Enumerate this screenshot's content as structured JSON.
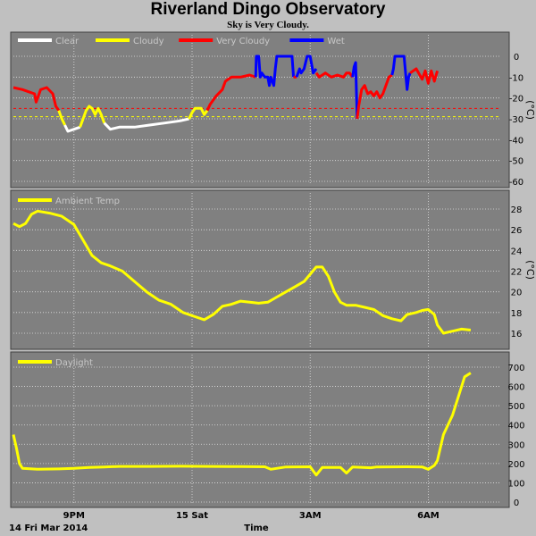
{
  "title": "Riverland Dingo Observatory",
  "subtitle": "Sky is Very Cloudy.",
  "x_axis": {
    "label": "Time",
    "date_label": "14 Fri Mar 2014",
    "ticks": [
      "9PM",
      "15 Sat",
      "3AM",
      "6AM"
    ]
  },
  "chart_data": [
    {
      "type": "line",
      "panel": "sky",
      "unit": "(°C)",
      "ylim": [
        -60,
        0
      ],
      "yticks": [
        "0",
        "-10",
        "-20",
        "-30",
        "-40",
        "-50",
        "-60"
      ],
      "x_units": "hours since 7PM",
      "thresholds": [
        {
          "value": -25,
          "color": "#ff0000"
        },
        {
          "value": -29,
          "color": "#ffff00"
        }
      ],
      "series": [
        {
          "name": "Clear",
          "color": "#ffffff"
        },
        {
          "name": "Cloudy",
          "color": "#ffff00"
        },
        {
          "name": "Very Cloudy",
          "color": "#ff0000"
        },
        {
          "name": "Wet",
          "color": "#0000ff"
        }
      ],
      "segments": [
        {
          "series": "Very Cloudy",
          "points": [
            [
              0.0,
              -15
            ],
            [
              0.3,
              -16
            ],
            [
              0.5,
              -17
            ],
            [
              0.7,
              -18
            ],
            [
              0.75,
              -22
            ],
            [
              0.8,
              -20
            ],
            [
              0.9,
              -16
            ],
            [
              1.1,
              -15
            ],
            [
              1.3,
              -18
            ],
            [
              1.4,
              -24
            ],
            [
              1.5,
              -26
            ]
          ]
        },
        {
          "series": "Cloudy",
          "points": [
            [
              1.5,
              -26
            ],
            [
              1.6,
              -30
            ],
            [
              1.7,
              -33
            ]
          ]
        },
        {
          "series": "Clear",
          "points": [
            [
              1.7,
              -33
            ],
            [
              1.8,
              -36
            ],
            [
              2.0,
              -35
            ],
            [
              2.2,
              -34
            ]
          ]
        },
        {
          "series": "Cloudy",
          "points": [
            [
              2.2,
              -34
            ],
            [
              2.3,
              -30
            ],
            [
              2.4,
              -26
            ],
            [
              2.5,
              -24
            ],
            [
              2.6,
              -25
            ],
            [
              2.7,
              -28
            ],
            [
              2.8,
              -25
            ],
            [
              2.9,
              -28
            ],
            [
              3.0,
              -32
            ]
          ]
        },
        {
          "series": "Clear",
          "points": [
            [
              3.0,
              -32
            ],
            [
              3.2,
              -35
            ],
            [
              3.5,
              -34
            ],
            [
              4.0,
              -34
            ],
            [
              4.5,
              -33
            ],
            [
              5.0,
              -32
            ],
            [
              5.5,
              -31
            ],
            [
              5.8,
              -30
            ]
          ]
        },
        {
          "series": "Cloudy",
          "points": [
            [
              5.8,
              -30
            ],
            [
              5.9,
              -27
            ],
            [
              6.0,
              -25
            ],
            [
              6.1,
              -25
            ],
            [
              6.2,
              -25
            ],
            [
              6.3,
              -28
            ],
            [
              6.4,
              -26
            ]
          ]
        },
        {
          "series": "Very Cloudy",
          "points": [
            [
              6.4,
              -26
            ],
            [
              6.5,
              -23
            ],
            [
              6.7,
              -19
            ],
            [
              6.9,
              -16
            ],
            [
              7.0,
              -12
            ],
            [
              7.2,
              -10
            ],
            [
              7.5,
              -10
            ],
            [
              7.8,
              -9
            ],
            [
              8.0,
              -10
            ]
          ]
        },
        {
          "series": "Wet",
          "points": [
            [
              8.0,
              -10
            ],
            [
              8.02,
              0
            ],
            [
              8.1,
              0
            ],
            [
              8.15,
              -10
            ],
            [
              8.2,
              -8
            ],
            [
              8.3,
              -10
            ],
            [
              8.4,
              -10
            ],
            [
              8.45,
              -14
            ],
            [
              8.5,
              -10
            ],
            [
              8.6,
              -14
            ],
            [
              8.65,
              -6
            ],
            [
              8.7,
              0
            ],
            [
              9.0,
              0
            ],
            [
              9.2,
              0
            ],
            [
              9.25,
              -10
            ]
          ]
        },
        {
          "series": "Very Cloudy",
          "points": [
            [
              9.25,
              -10
            ],
            [
              9.35,
              -10
            ]
          ]
        },
        {
          "series": "Wet",
          "points": [
            [
              9.35,
              -10
            ],
            [
              9.45,
              -6
            ],
            [
              9.5,
              -8
            ],
            [
              9.6,
              -6
            ],
            [
              9.7,
              0
            ],
            [
              9.8,
              0
            ],
            [
              9.9,
              -8
            ],
            [
              10.0,
              -6
            ]
          ]
        },
        {
          "series": "Very Cloudy",
          "points": [
            [
              10.0,
              -8
            ],
            [
              10.1,
              -10
            ],
            [
              10.3,
              -8
            ],
            [
              10.5,
              -10
            ],
            [
              10.7,
              -9
            ],
            [
              10.9,
              -10
            ],
            [
              11.0,
              -8
            ],
            [
              11.1,
              -8
            ],
            [
              11.2,
              -10
            ]
          ]
        },
        {
          "series": "Wet",
          "points": [
            [
              11.2,
              -10
            ],
            [
              11.25,
              -5
            ],
            [
              11.3,
              -3
            ],
            [
              11.35,
              -30
            ]
          ]
        },
        {
          "series": "Very Cloudy",
          "points": [
            [
              11.35,
              -30
            ],
            [
              11.4,
              -24
            ],
            [
              11.5,
              -16
            ],
            [
              11.6,
              -14
            ],
            [
              11.7,
              -18
            ],
            [
              11.8,
              -17
            ],
            [
              11.9,
              -19
            ],
            [
              12.0,
              -17
            ],
            [
              12.1,
              -20
            ],
            [
              12.2,
              -18
            ],
            [
              12.3,
              -14
            ],
            [
              12.4,
              -10
            ],
            [
              12.5,
              -9
            ]
          ]
        },
        {
          "series": "Wet",
          "points": [
            [
              12.5,
              -9
            ],
            [
              12.55,
              -6
            ],
            [
              12.6,
              0
            ],
            [
              12.9,
              0
            ],
            [
              13.0,
              -16
            ],
            [
              13.05,
              -10
            ],
            [
              13.1,
              -8
            ]
          ]
        },
        {
          "series": "Very Cloudy",
          "points": [
            [
              13.1,
              -8
            ],
            [
              13.3,
              -6
            ],
            [
              13.5,
              -11
            ],
            [
              13.6,
              -7
            ],
            [
              13.7,
              -13
            ],
            [
              13.8,
              -7
            ],
            [
              13.9,
              -12
            ],
            [
              14.0,
              -7
            ]
          ]
        }
      ]
    },
    {
      "type": "line",
      "panel": "ambient",
      "unit": "(°C)",
      "ylim": [
        15,
        29
      ],
      "yticks": [
        "28",
        "26",
        "24",
        "22",
        "20",
        "18",
        "16"
      ],
      "x_units": "hours since 7PM",
      "series": [
        {
          "name": "Ambient Temp",
          "color": "#ffff00",
          "points": [
            [
              0.0,
              26.6
            ],
            [
              0.2,
              26.3
            ],
            [
              0.4,
              26.6
            ],
            [
              0.6,
              27.5
            ],
            [
              0.8,
              27.8
            ],
            [
              1.2,
              27.6
            ],
            [
              1.6,
              27.3
            ],
            [
              2.0,
              26.5
            ],
            [
              2.3,
              25.0
            ],
            [
              2.6,
              23.5
            ],
            [
              2.9,
              22.8
            ],
            [
              3.2,
              22.5
            ],
            [
              3.6,
              22.0
            ],
            [
              4.0,
              21.0
            ],
            [
              4.4,
              20.0
            ],
            [
              4.8,
              19.2
            ],
            [
              5.2,
              18.8
            ],
            [
              5.6,
              18.0
            ],
            [
              6.0,
              17.6
            ],
            [
              6.3,
              17.3
            ],
            [
              6.6,
              17.8
            ],
            [
              6.9,
              18.6
            ],
            [
              7.2,
              18.8
            ],
            [
              7.5,
              19.1
            ],
            [
              7.8,
              19.0
            ],
            [
              8.1,
              18.9
            ],
            [
              8.4,
              19.0
            ],
            [
              8.7,
              19.5
            ],
            [
              9.0,
              20.0
            ],
            [
              9.3,
              20.5
            ],
            [
              9.6,
              21.0
            ],
            [
              9.8,
              21.7
            ],
            [
              10.0,
              22.4
            ],
            [
              10.2,
              22.4
            ],
            [
              10.4,
              21.5
            ],
            [
              10.6,
              20.0
            ],
            [
              10.8,
              19.0
            ],
            [
              11.0,
              18.7
            ],
            [
              11.3,
              18.7
            ],
            [
              11.6,
              18.5
            ],
            [
              11.9,
              18.3
            ],
            [
              12.2,
              17.7
            ],
            [
              12.5,
              17.4
            ],
            [
              12.8,
              17.2
            ],
            [
              13.0,
              17.8
            ],
            [
              13.3,
              18.0
            ],
            [
              13.5,
              18.2
            ],
            [
              13.7,
              18.3
            ],
            [
              13.9,
              17.8
            ],
            [
              14.0,
              16.8
            ],
            [
              14.2,
              16.0
            ],
            [
              14.5,
              16.2
            ],
            [
              14.8,
              16.4
            ],
            [
              15.1,
              16.3
            ]
          ]
        }
      ]
    },
    {
      "type": "line",
      "panel": "daylight",
      "ylim": [
        0,
        700
      ],
      "yticks": [
        "700",
        "600",
        "500",
        "400",
        "300",
        "200",
        "100",
        "0"
      ],
      "x_units": "hours since 7PM",
      "series": [
        {
          "name": "Daylight",
          "color": "#ffff00",
          "points": [
            [
              0.0,
              350
            ],
            [
              0.1,
              280
            ],
            [
              0.2,
              200
            ],
            [
              0.3,
              175
            ],
            [
              0.8,
              170
            ],
            [
              1.5,
              172
            ],
            [
              2.0,
              175
            ],
            [
              2.5,
              180
            ],
            [
              3.0,
              182
            ],
            [
              3.5,
              185
            ],
            [
              4.5,
              185
            ],
            [
              5.5,
              186
            ],
            [
              6.5,
              185
            ],
            [
              7.5,
              184
            ],
            [
              8.3,
              183
            ],
            [
              8.5,
              170
            ],
            [
              9.0,
              182
            ],
            [
              9.8,
              183
            ],
            [
              10.0,
              140
            ],
            [
              10.2,
              180
            ],
            [
              10.8,
              180
            ],
            [
              11.0,
              150
            ],
            [
              11.2,
              182
            ],
            [
              11.8,
              178
            ],
            [
              12.0,
              182
            ],
            [
              13.0,
              183
            ],
            [
              13.5,
              182
            ],
            [
              13.7,
              170
            ],
            [
              13.9,
              190
            ],
            [
              14.0,
              215
            ],
            [
              14.2,
              350
            ],
            [
              14.5,
              450
            ],
            [
              14.7,
              550
            ],
            [
              14.9,
              650
            ],
            [
              15.1,
              670
            ]
          ]
        }
      ]
    }
  ]
}
